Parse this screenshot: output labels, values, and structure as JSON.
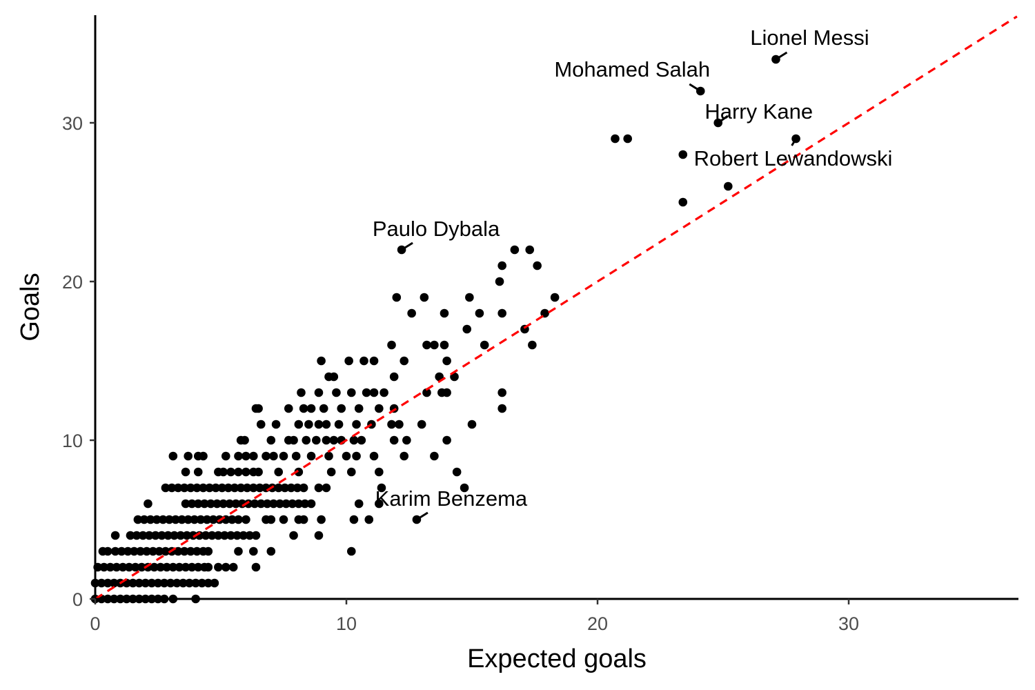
{
  "chart_data": {
    "type": "scatter",
    "title": "",
    "xlabel": "Expected goals",
    "ylabel": "Goals",
    "xlim": [
      0,
      36.7
    ],
    "ylim": [
      0,
      36.8
    ],
    "xticks": [
      0,
      10,
      20,
      30
    ],
    "yticks": [
      0,
      10,
      20,
      30
    ],
    "grid": false,
    "reference_line": {
      "type": "y=x",
      "color": "#ff0000",
      "style": "dashed"
    },
    "point_color": "#000000",
    "points_by_goals": {
      "0": [
        0.0,
        0.25,
        0.5,
        0.75,
        1.0,
        1.25,
        1.5,
        1.75,
        2.0,
        2.25,
        2.5,
        2.75,
        3.1,
        4.0
      ],
      "1": [
        0.0,
        0.25,
        0.5,
        0.75,
        1.0,
        1.25,
        1.5,
        1.75,
        2.0,
        2.25,
        2.5,
        2.75,
        3.0,
        3.25,
        3.5,
        3.75,
        4.0,
        4.25,
        4.5,
        4.75
      ],
      "2": [
        0.1,
        0.35,
        0.6,
        0.85,
        1.1,
        1.35,
        1.6,
        1.85,
        2.1,
        2.35,
        2.6,
        2.85,
        3.1,
        3.35,
        3.6,
        3.85,
        4.1,
        4.35,
        4.5,
        4.9,
        5.2,
        5.5,
        6.4
      ],
      "3": [
        0.3,
        0.5,
        0.8,
        1.05,
        1.3,
        1.55,
        1.8,
        2.05,
        2.3,
        2.55,
        2.8,
        3.05,
        3.3,
        3.55,
        3.8,
        4.05,
        4.3,
        4.5,
        5.7,
        6.3,
        7.0,
        10.2
      ],
      "4": [
        0.8,
        1.4,
        1.65,
        1.9,
        2.15,
        2.4,
        2.65,
        2.9,
        3.15,
        3.4,
        3.65,
        3.9,
        4.15,
        4.4,
        4.65,
        4.9,
        5.15,
        5.4,
        5.65,
        5.9,
        6.15,
        6.4,
        7.9,
        8.9
      ],
      "5": [
        1.7,
        1.95,
        2.2,
        2.45,
        2.7,
        2.95,
        3.2,
        3.45,
        3.7,
        3.95,
        4.2,
        4.45,
        4.7,
        4.95,
        5.2,
        5.45,
        5.7,
        6.0,
        6.8,
        7.0,
        7.5,
        8.1,
        8.3,
        9.0,
        10.3,
        10.9
      ],
      "6": [
        2.1,
        3.6,
        3.85,
        4.1,
        4.35,
        4.6,
        4.85,
        5.1,
        5.35,
        5.6,
        5.85,
        6.1,
        6.35,
        6.6,
        6.85,
        7.1,
        7.35,
        7.6,
        7.85,
        8.1,
        8.35,
        8.6,
        10.5,
        11.3
      ],
      "7": [
        2.8,
        3.05,
        3.3,
        3.55,
        3.8,
        4.05,
        4.3,
        4.55,
        4.8,
        5.05,
        5.3,
        5.55,
        5.8,
        6.05,
        6.3,
        6.55,
        6.8,
        7.05,
        7.3,
        7.55,
        7.8,
        8.05,
        8.3,
        8.9,
        9.2,
        11.4,
        14.7
      ],
      "8": [
        3.6,
        4.1,
        4.9,
        5.1,
        5.4,
        5.7,
        6.0,
        6.3,
        6.5,
        7.3,
        8.1,
        9.4,
        10.2,
        11.3,
        14.4
      ],
      "9": [
        3.1,
        3.7,
        4.1,
        4.3,
        5.2,
        5.7,
        6.0,
        6.3,
        6.8,
        7.1,
        7.5,
        8.0,
        8.6,
        9.3,
        10.0,
        10.4,
        11.1,
        12.3,
        13.5
      ],
      "10": [
        5.8,
        5.95,
        7.0,
        7.7,
        7.9,
        8.4,
        8.8,
        9.2,
        9.5,
        9.8,
        10.3,
        10.6,
        11.9,
        12.4,
        14.0
      ],
      "11": [
        6.6,
        7.2,
        8.1,
        8.5,
        8.9,
        9.2,
        9.7,
        10.4,
        11.0,
        11.8,
        12.1,
        13.0,
        15.0
      ],
      "12": [
        6.4,
        6.5,
        7.7,
        8.3,
        8.6,
        9.1,
        9.8,
        10.5,
        11.3,
        11.9,
        16.2
      ],
      "13": [
        8.2,
        8.9,
        9.6,
        10.2,
        10.8,
        11.1,
        11.5,
        13.2,
        13.8,
        14.0,
        16.2
      ],
      "14": [
        9.3,
        9.5,
        11.9,
        13.7,
        14.3
      ],
      "15": [
        9.0,
        10.1,
        10.7,
        11.1,
        12.3,
        14.0
      ],
      "16": [
        11.8,
        13.2,
        13.5,
        13.9,
        15.5,
        17.4
      ],
      "17": [
        14.8,
        17.1
      ],
      "18": [
        12.6,
        13.9,
        15.3,
        16.2,
        17.9
      ],
      "19": [
        12.0,
        13.1,
        14.9,
        18.3
      ],
      "20": [
        16.1
      ],
      "21": [
        16.2,
        17.6
      ],
      "22": [
        12.2,
        16.7,
        17.3
      ],
      "25": [
        23.4
      ],
      "26": [
        25.2
      ],
      "28": [
        23.4
      ],
      "29": [
        20.7,
        21.2,
        27.9
      ],
      "30": [
        24.8
      ],
      "32": [
        24.1
      ],
      "34": [
        27.1
      ],
      "5b": [
        12.8
      ]
    },
    "annotations": [
      {
        "label": "Lionel Messi",
        "x": 27.1,
        "y": 34
      },
      {
        "label": "Mohamed Salah",
        "x": 24.1,
        "y": 32
      },
      {
        "label": "Harry Kane",
        "x": 24.8,
        "y": 30
      },
      {
        "label": "Robert Lewandowski",
        "x": 27.9,
        "y": 29
      },
      {
        "label": "Paulo Dybala",
        "x": 12.2,
        "y": 22
      },
      {
        "label": "Karim Benzema",
        "x": 12.8,
        "y": 5
      }
    ]
  }
}
